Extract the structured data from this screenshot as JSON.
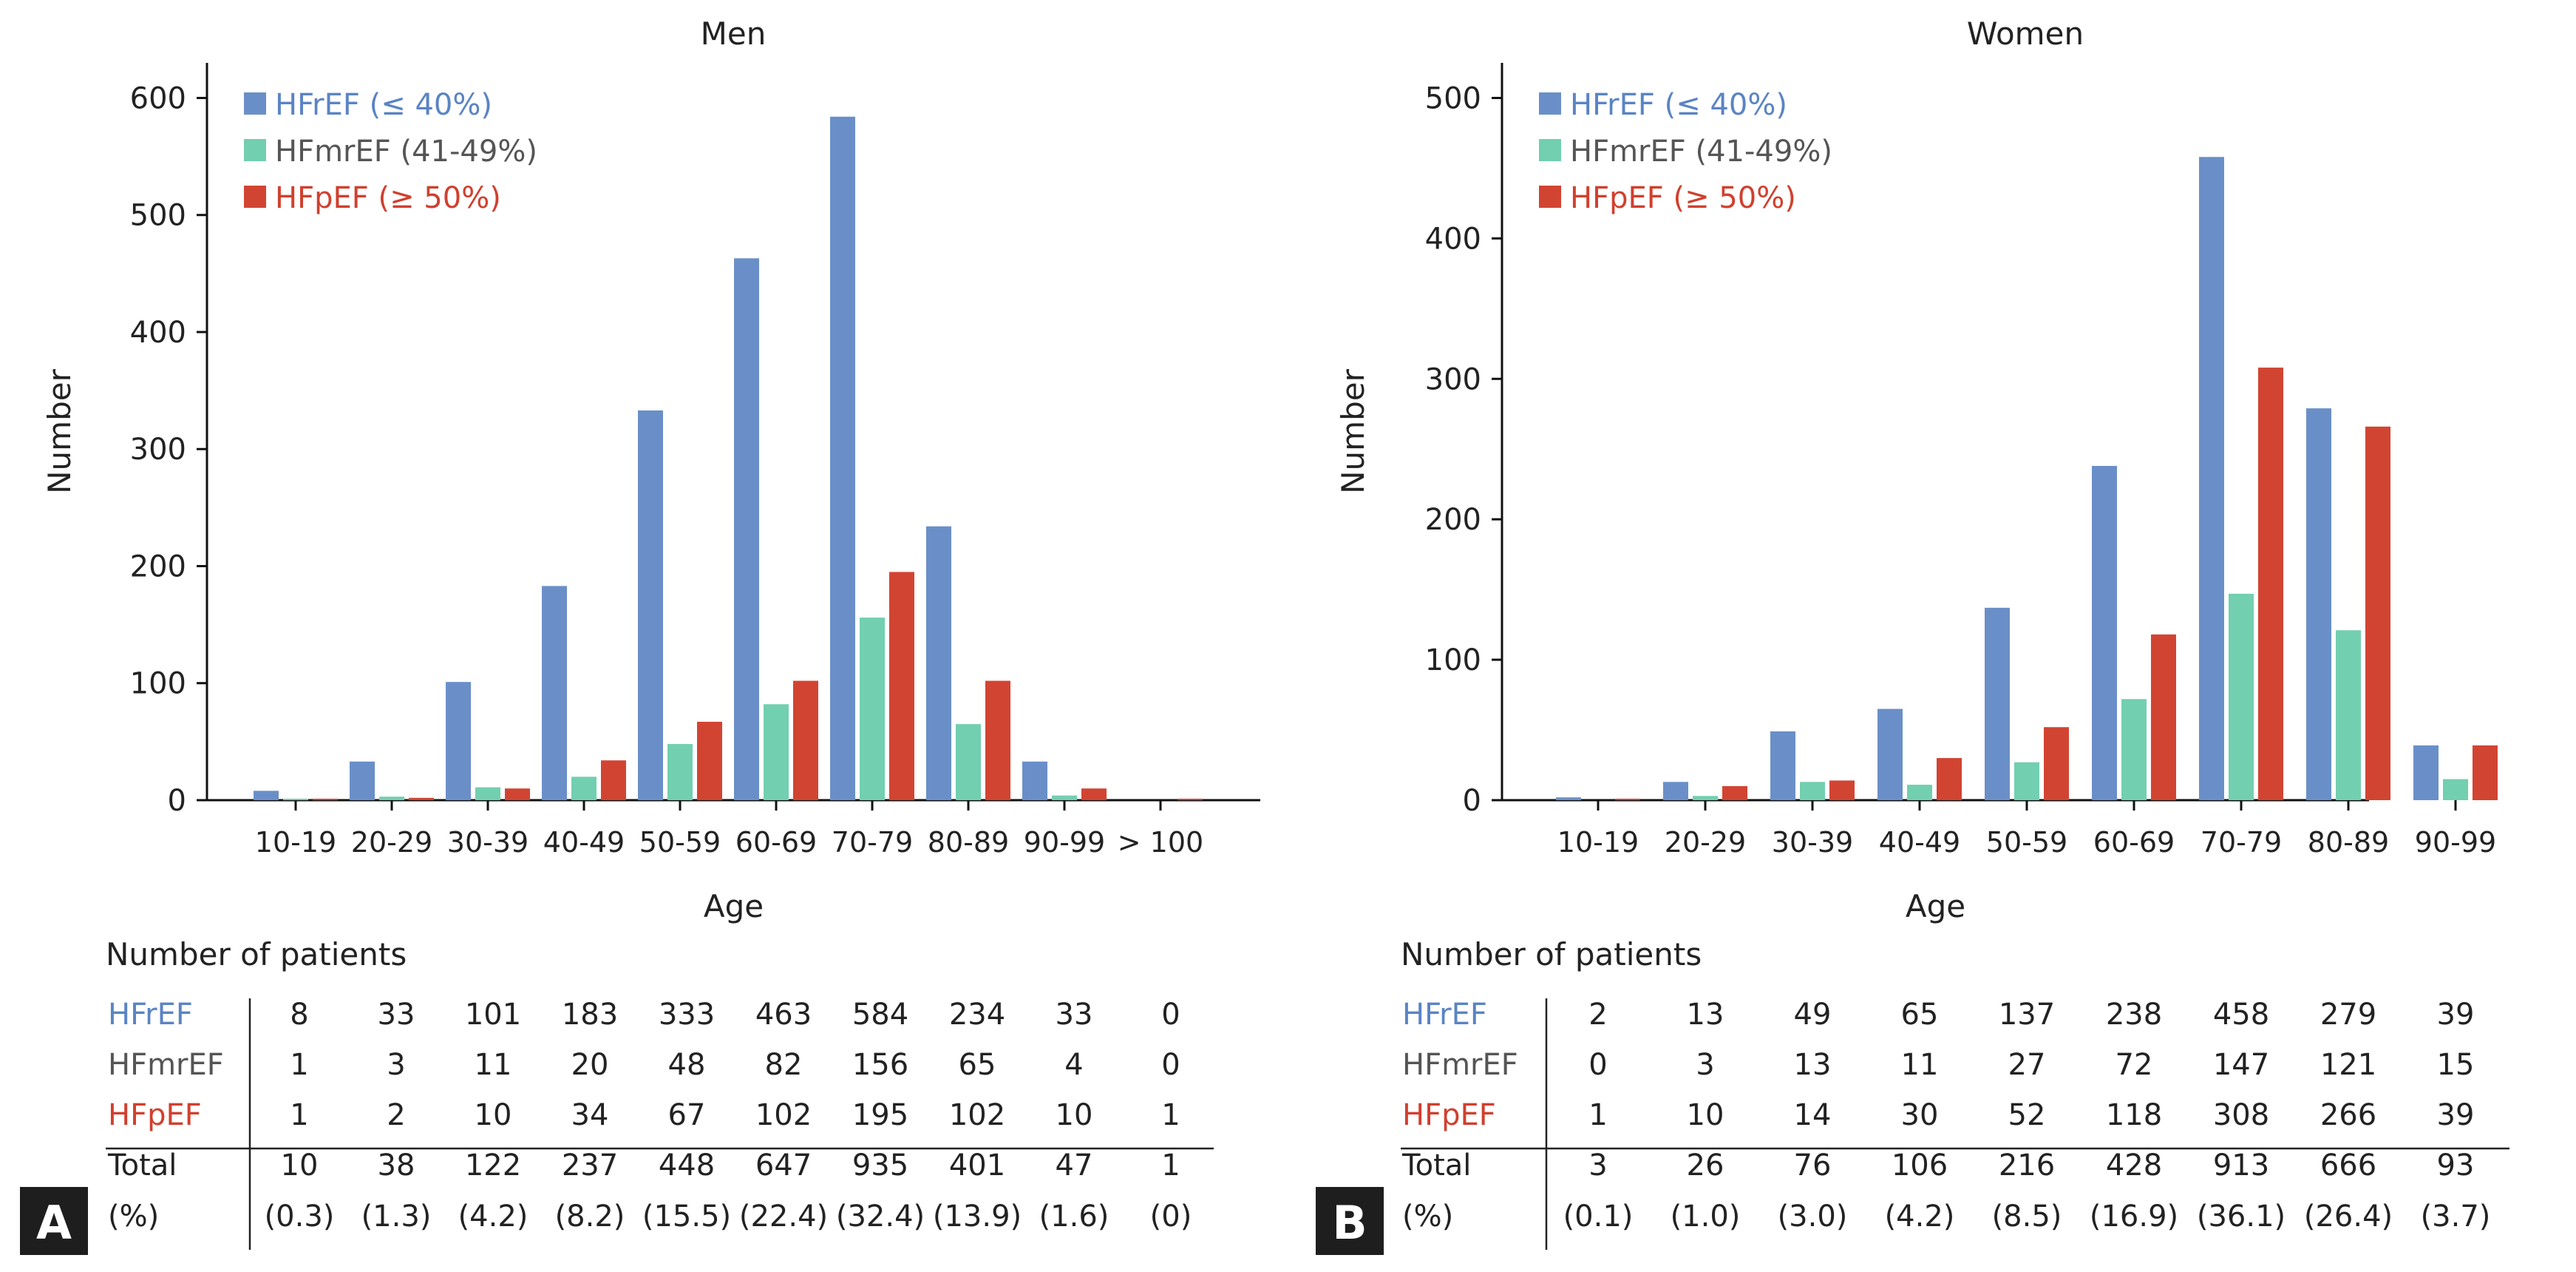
{
  "colors": {
    "HFrEF": "#6a8fc8",
    "HFmrEF": "#72cfb0",
    "HFpEF": "#d24432",
    "HFrEF_text": "#5a84c4",
    "HFmrEF_text": "#555555",
    "HFpEF_text": "#d0402e"
  },
  "chart_data": [
    {
      "type": "bar",
      "panel": "A",
      "title": "Men",
      "xlabel": "Age",
      "ylabel": "Number",
      "ylim": [
        0,
        630
      ],
      "yticks": [
        0,
        100,
        200,
        300,
        400,
        500,
        600
      ],
      "categories": [
        "10-19",
        "20-29",
        "30-39",
        "40-49",
        "50-59",
        "60-69",
        "70-79",
        "80-89",
        "90-99",
        "> 100"
      ],
      "series": [
        {
          "name": "HFrEF",
          "legend": "HFrEF (≤ 40%)",
          "values": [
            8,
            33,
            101,
            183,
            333,
            463,
            584,
            234,
            33,
            0
          ]
        },
        {
          "name": "HFmrEF",
          "legend": "HFmrEF (41-49%)",
          "values": [
            1,
            3,
            11,
            20,
            48,
            82,
            156,
            65,
            4,
            0
          ]
        },
        {
          "name": "HFpEF",
          "legend": "HFpEF (≥ 50%)",
          "values": [
            1,
            2,
            10,
            34,
            67,
            102,
            195,
            102,
            10,
            1
          ]
        }
      ],
      "table": {
        "heading": "Number of patients",
        "rows": [
          {
            "label": "HFrEF",
            "values": [
              "8",
              "33",
              "101",
              "183",
              "333",
              "463",
              "584",
              "234",
              "33",
              "0"
            ]
          },
          {
            "label": "HFmrEF",
            "values": [
              "1",
              "3",
              "11",
              "20",
              "48",
              "82",
              "156",
              "65",
              "4",
              "0"
            ]
          },
          {
            "label": "HFpEF",
            "values": [
              "1",
              "2",
              "10",
              "34",
              "67",
              "102",
              "195",
              "102",
              "10",
              "1"
            ]
          },
          {
            "label": "Total",
            "values": [
              "10",
              "38",
              "122",
              "237",
              "448",
              "647",
              "935",
              "401",
              "47",
              "1"
            ]
          },
          {
            "label": "(%)",
            "values": [
              "(0.3)",
              "(1.3)",
              "(4.2)",
              "(8.2)",
              "(15.5)",
              "(22.4)",
              "(32.4)",
              "(13.9)",
              "(1.6)",
              "(0)"
            ]
          }
        ]
      }
    },
    {
      "type": "bar",
      "panel": "B",
      "title": "Women",
      "xlabel": "Age",
      "ylabel": "Number",
      "ylim": [
        0,
        525
      ],
      "yticks": [
        0,
        100,
        200,
        300,
        400,
        500
      ],
      "categories": [
        "10-19",
        "20-29",
        "30-39",
        "40-49",
        "50-59",
        "60-69",
        "70-79",
        "80-89",
        "90-99"
      ],
      "series": [
        {
          "name": "HFrEF",
          "legend": "HFrEF (≤ 40%)",
          "values": [
            2,
            13,
            49,
            65,
            137,
            238,
            458,
            279,
            39
          ]
        },
        {
          "name": "HFmrEF",
          "legend": "HFmrEF (41-49%)",
          "values": [
            0,
            3,
            13,
            11,
            27,
            72,
            147,
            121,
            15
          ]
        },
        {
          "name": "HFpEF",
          "legend": "HFpEF (≥ 50%)",
          "values": [
            1,
            10,
            14,
            30,
            52,
            118,
            308,
            266,
            39
          ]
        }
      ],
      "table": {
        "heading": "Number of patients",
        "rows": [
          {
            "label": "HFrEF",
            "values": [
              "2",
              "13",
              "49",
              "65",
              "137",
              "238",
              "458",
              "279",
              "39"
            ]
          },
          {
            "label": "HFmrEF",
            "values": [
              "0",
              "3",
              "13",
              "11",
              "27",
              "72",
              "147",
              "121",
              "15"
            ]
          },
          {
            "label": "HFpEF",
            "values": [
              "1",
              "10",
              "14",
              "30",
              "52",
              "118",
              "308",
              "266",
              "39"
            ]
          },
          {
            "label": "Total",
            "values": [
              "3",
              "26",
              "76",
              "106",
              "216",
              "428",
              "913",
              "666",
              "93"
            ]
          },
          {
            "label": "(%)",
            "values": [
              "(0.1)",
              "(1.0)",
              "(3.0)",
              "(4.2)",
              "(8.5)",
              "(16.9)",
              "(36.1)",
              "(26.4)",
              "(3.7)"
            ]
          }
        ]
      }
    }
  ]
}
